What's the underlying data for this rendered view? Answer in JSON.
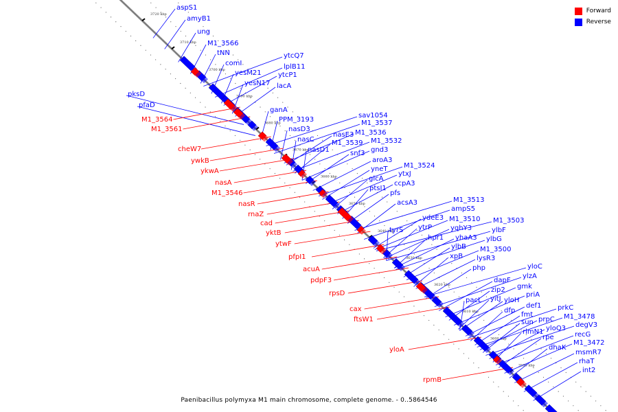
{
  "legend": {
    "forward_label": "Forward",
    "reverse_label": "Reverse",
    "forward_color": "#ff0000",
    "reverse_color": "#0000ff"
  },
  "footer": "Paenibacillus polymyxa M1 main chromosome, complete genome. - 0..5864546",
  "ticks": [
    "3720 kbp",
    "3710 kbp",
    "3700 kbp",
    "3690 kbp",
    "3680 kbp",
    "3670 kbp",
    "3660 kbp",
    "3650 kbp",
    "3640 kbp",
    "3630 kbp",
    "3620 kbp",
    "3610 kbp",
    "3600 kbp",
    "3590 kbp"
  ],
  "reverse_labels": [
    "aspS1",
    "amyB1",
    "ung",
    "M1_3566",
    "tNN",
    "comI",
    "ytcQ7",
    "yesM21",
    "lplB11",
    "yesN17",
    "ytcP1",
    "lacA",
    "pksD",
    "pfaD",
    "ganA",
    "PPM_3193",
    "nasD3",
    "nasC",
    "sav1054",
    "nasE3",
    "M1_3537",
    "M1_3536",
    "nasD1",
    "M1_3539",
    "M1_3532",
    "snf3",
    "gnd3",
    "aroA3",
    "yneT",
    "M1_3524",
    "glcA",
    "ytxJ",
    "ccpA3",
    "ptsI1",
    "pfs",
    "acsA3",
    "tyrS",
    "M1_3513",
    "ydeE3",
    "ampS5",
    "ytrP",
    "M1_3510",
    "hpr1",
    "yqhY3",
    "M1_3503",
    "ylbF",
    "yhaA3",
    "ylbB",
    "ylbG",
    "M1_3500",
    "xpB",
    "lysR3",
    "php",
    "yloC",
    "dapF",
    "ylzA",
    "zip2",
    "gmk",
    "pacL",
    "yitJ",
    "yloH",
    "priA",
    "dfp",
    "def1",
    "prkC",
    "fmt",
    "prpC",
    "M1_3478",
    "sun",
    "yloQ3",
    "degV3",
    "rlmN1",
    "rpe",
    "recG",
    "dhaK",
    "M1_3472",
    "msmR7",
    "rhaT",
    "int2"
  ],
  "forward_labels": [
    "M1_3564",
    "M1_3561",
    "cheW7",
    "ywkB",
    "ykwA",
    "nasA",
    "M1_3546",
    "nasR",
    "rnaZ",
    "cad",
    "yktB",
    "ytwF",
    "pfpI1",
    "acuA",
    "pdpF3",
    "rpsD",
    "cax",
    "ftsW1",
    "yloA",
    "rpmB"
  ]
}
